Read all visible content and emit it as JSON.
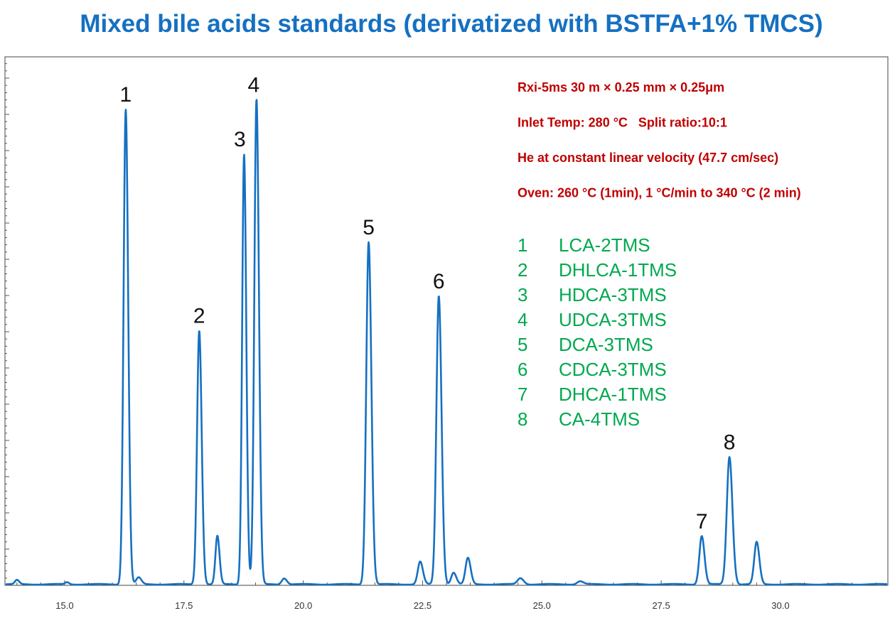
{
  "chart_data": {
    "type": "line",
    "title": "Mixed bile acids standards (derivatized with BSTFA+1% TMCS)",
    "xlabel": "",
    "ylabel": "",
    "xlim": [
      13.75,
      32.25
    ],
    "ylim": [
      0,
      100
    ],
    "x_tick_labels": [
      "15.0",
      "17.5",
      "20.0",
      "22.5",
      "25.0",
      "27.5",
      "30.0"
    ],
    "x_tick_values": [
      15.0,
      17.5,
      20.0,
      22.5,
      25.0,
      27.5,
      30.0
    ],
    "grid": false,
    "series": [
      {
        "color": "#1570c1",
        "baseline": 0.2,
        "peaks": [
          {
            "x": 14.0,
            "h": 0.8,
            "w": 0.04
          },
          {
            "x": 15.05,
            "h": 0.4,
            "w": 0.04
          },
          {
            "x": 16.28,
            "h": 92.4,
            "w": 0.045
          },
          {
            "x": 16.55,
            "h": 1.3,
            "w": 0.05
          },
          {
            "x": 17.82,
            "h": 49.4,
            "w": 0.045
          },
          {
            "x": 18.2,
            "h": 9.4,
            "w": 0.04
          },
          {
            "x": 18.76,
            "h": 83.7,
            "w": 0.04
          },
          {
            "x": 19.02,
            "h": 94.3,
            "w": 0.045
          },
          {
            "x": 19.6,
            "h": 1.2,
            "w": 0.05
          },
          {
            "x": 21.37,
            "h": 66.6,
            "w": 0.05
          },
          {
            "x": 22.45,
            "h": 4.4,
            "w": 0.05
          },
          {
            "x": 22.84,
            "h": 56.1,
            "w": 0.05
          },
          {
            "x": 23.15,
            "h": 2.3,
            "w": 0.05
          },
          {
            "x": 23.45,
            "h": 5.1,
            "w": 0.05
          },
          {
            "x": 24.55,
            "h": 1.2,
            "w": 0.06
          },
          {
            "x": 25.8,
            "h": 0.6,
            "w": 0.06
          },
          {
            "x": 28.35,
            "h": 9.4,
            "w": 0.05
          },
          {
            "x": 28.93,
            "h": 24.8,
            "w": 0.055
          },
          {
            "x": 29.5,
            "h": 8.2,
            "w": 0.05
          }
        ]
      }
    ],
    "peak_labels": [
      {
        "label": "1",
        "x": 16.28,
        "h": 92.4
      },
      {
        "label": "2",
        "x": 17.82,
        "h": 49.4
      },
      {
        "label": "3",
        "x": 18.76,
        "h": 83.7
      },
      {
        "label": "4",
        "x": 19.02,
        "h": 94.3
      },
      {
        "label": "5",
        "x": 21.37,
        "h": 66.6
      },
      {
        "label": "6",
        "x": 22.84,
        "h": 56.1
      },
      {
        "label": "7",
        "x": 28.35,
        "h": 9.4
      },
      {
        "label": "8",
        "x": 28.93,
        "h": 24.8
      }
    ],
    "conditions": [
      "Rxi-5ms 30 m × 0.25 mm × 0.25μm",
      "Inlet Temp: 280 °C   Split ratio:10:1",
      "He at constant linear velocity (47.7 cm/sec)",
      "Oven: 260 °C (1min), 1 °C/min to 340 °C (2 min)"
    ],
    "compounds": [
      {
        "num": "1",
        "name": "LCA-2TMS"
      },
      {
        "num": "2",
        "name": "DHLCA-1TMS"
      },
      {
        "num": "3",
        "name": "HDCA-3TMS"
      },
      {
        "num": "4",
        "name": "UDCA-3TMS"
      },
      {
        "num": "5",
        "name": "DCA-3TMS"
      },
      {
        "num": "6",
        "name": "CDCA-3TMS"
      },
      {
        "num": "7",
        "name": "DHCA-1TMS"
      },
      {
        "num": "8",
        "name": "CA-4TMS"
      }
    ],
    "colors": {
      "title": "#1570c1",
      "trace": "#1570c1",
      "conditions": "#c00000",
      "legend": "#00a84f"
    }
  }
}
